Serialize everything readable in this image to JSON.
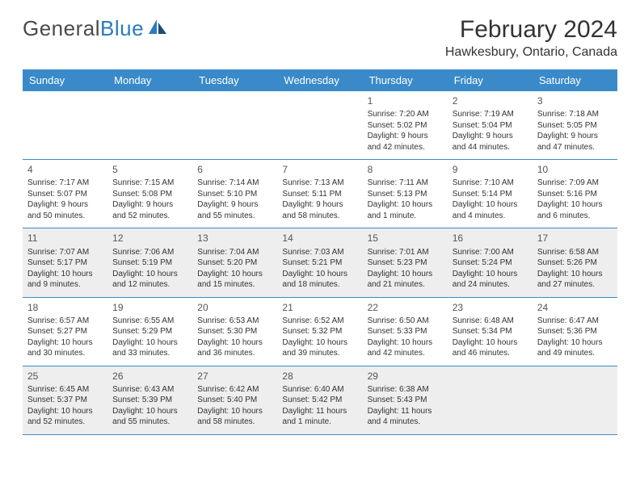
{
  "logo": {
    "text1": "General",
    "text2": "Blue"
  },
  "title": "February 2024",
  "location": "Hawkesbury, Ontario, Canada",
  "colors": {
    "header_bg": "#3a8ac9",
    "header_text": "#ffffff",
    "shaded": "#eeeeee",
    "border": "#3a8ac9",
    "logo_blue": "#2b7bbd"
  },
  "day_names": [
    "Sunday",
    "Monday",
    "Tuesday",
    "Wednesday",
    "Thursday",
    "Friday",
    "Saturday"
  ],
  "days": {
    "1": {
      "sunrise": "Sunrise: 7:20 AM",
      "sunset": "Sunset: 5:02 PM",
      "daylight": "Daylight: 9 hours and 42 minutes."
    },
    "2": {
      "sunrise": "Sunrise: 7:19 AM",
      "sunset": "Sunset: 5:04 PM",
      "daylight": "Daylight: 9 hours and 44 minutes."
    },
    "3": {
      "sunrise": "Sunrise: 7:18 AM",
      "sunset": "Sunset: 5:05 PM",
      "daylight": "Daylight: 9 hours and 47 minutes."
    },
    "4": {
      "sunrise": "Sunrise: 7:17 AM",
      "sunset": "Sunset: 5:07 PM",
      "daylight": "Daylight: 9 hours and 50 minutes."
    },
    "5": {
      "sunrise": "Sunrise: 7:15 AM",
      "sunset": "Sunset: 5:08 PM",
      "daylight": "Daylight: 9 hours and 52 minutes."
    },
    "6": {
      "sunrise": "Sunrise: 7:14 AM",
      "sunset": "Sunset: 5:10 PM",
      "daylight": "Daylight: 9 hours and 55 minutes."
    },
    "7": {
      "sunrise": "Sunrise: 7:13 AM",
      "sunset": "Sunset: 5:11 PM",
      "daylight": "Daylight: 9 hours and 58 minutes."
    },
    "8": {
      "sunrise": "Sunrise: 7:11 AM",
      "sunset": "Sunset: 5:13 PM",
      "daylight": "Daylight: 10 hours and 1 minute."
    },
    "9": {
      "sunrise": "Sunrise: 7:10 AM",
      "sunset": "Sunset: 5:14 PM",
      "daylight": "Daylight: 10 hours and 4 minutes."
    },
    "10": {
      "sunrise": "Sunrise: 7:09 AM",
      "sunset": "Sunset: 5:16 PM",
      "daylight": "Daylight: 10 hours and 6 minutes."
    },
    "11": {
      "sunrise": "Sunrise: 7:07 AM",
      "sunset": "Sunset: 5:17 PM",
      "daylight": "Daylight: 10 hours and 9 minutes."
    },
    "12": {
      "sunrise": "Sunrise: 7:06 AM",
      "sunset": "Sunset: 5:19 PM",
      "daylight": "Daylight: 10 hours and 12 minutes."
    },
    "13": {
      "sunrise": "Sunrise: 7:04 AM",
      "sunset": "Sunset: 5:20 PM",
      "daylight": "Daylight: 10 hours and 15 minutes."
    },
    "14": {
      "sunrise": "Sunrise: 7:03 AM",
      "sunset": "Sunset: 5:21 PM",
      "daylight": "Daylight: 10 hours and 18 minutes."
    },
    "15": {
      "sunrise": "Sunrise: 7:01 AM",
      "sunset": "Sunset: 5:23 PM",
      "daylight": "Daylight: 10 hours and 21 minutes."
    },
    "16": {
      "sunrise": "Sunrise: 7:00 AM",
      "sunset": "Sunset: 5:24 PM",
      "daylight": "Daylight: 10 hours and 24 minutes."
    },
    "17": {
      "sunrise": "Sunrise: 6:58 AM",
      "sunset": "Sunset: 5:26 PM",
      "daylight": "Daylight: 10 hours and 27 minutes."
    },
    "18": {
      "sunrise": "Sunrise: 6:57 AM",
      "sunset": "Sunset: 5:27 PM",
      "daylight": "Daylight: 10 hours and 30 minutes."
    },
    "19": {
      "sunrise": "Sunrise: 6:55 AM",
      "sunset": "Sunset: 5:29 PM",
      "daylight": "Daylight: 10 hours and 33 minutes."
    },
    "20": {
      "sunrise": "Sunrise: 6:53 AM",
      "sunset": "Sunset: 5:30 PM",
      "daylight": "Daylight: 10 hours and 36 minutes."
    },
    "21": {
      "sunrise": "Sunrise: 6:52 AM",
      "sunset": "Sunset: 5:32 PM",
      "daylight": "Daylight: 10 hours and 39 minutes."
    },
    "22": {
      "sunrise": "Sunrise: 6:50 AM",
      "sunset": "Sunset: 5:33 PM",
      "daylight": "Daylight: 10 hours and 42 minutes."
    },
    "23": {
      "sunrise": "Sunrise: 6:48 AM",
      "sunset": "Sunset: 5:34 PM",
      "daylight": "Daylight: 10 hours and 46 minutes."
    },
    "24": {
      "sunrise": "Sunrise: 6:47 AM",
      "sunset": "Sunset: 5:36 PM",
      "daylight": "Daylight: 10 hours and 49 minutes."
    },
    "25": {
      "sunrise": "Sunrise: 6:45 AM",
      "sunset": "Sunset: 5:37 PM",
      "daylight": "Daylight: 10 hours and 52 minutes."
    },
    "26": {
      "sunrise": "Sunrise: 6:43 AM",
      "sunset": "Sunset: 5:39 PM",
      "daylight": "Daylight: 10 hours and 55 minutes."
    },
    "27": {
      "sunrise": "Sunrise: 6:42 AM",
      "sunset": "Sunset: 5:40 PM",
      "daylight": "Daylight: 10 hours and 58 minutes."
    },
    "28": {
      "sunrise": "Sunrise: 6:40 AM",
      "sunset": "Sunset: 5:42 PM",
      "daylight": "Daylight: 11 hours and 1 minute."
    },
    "29": {
      "sunrise": "Sunrise: 6:38 AM",
      "sunset": "Sunset: 5:43 PM",
      "daylight": "Daylight: 11 hours and 4 minutes."
    }
  },
  "layout": {
    "first_day_column": 4,
    "total_days": 29,
    "shaded_weeks": [
      2,
      4
    ]
  }
}
